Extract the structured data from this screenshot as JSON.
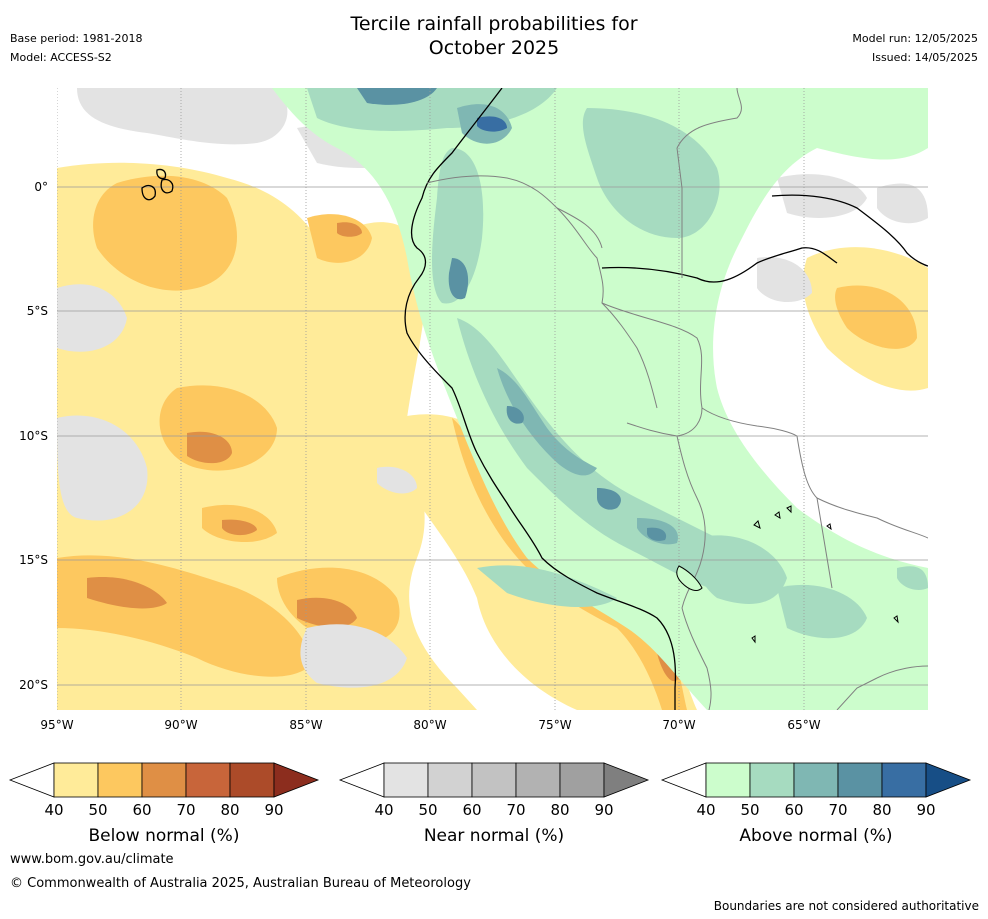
{
  "title_line1": "Tercile rainfall probabilities for",
  "title_line2": "October 2025",
  "base_period": "Base period: 1981-2018",
  "model": "Model: ACCESS-S2",
  "model_run": "Model run: 12/05/2025",
  "issued": "Issued: 14/05/2025",
  "map": {
    "lat_labels": [
      "0°",
      "5°S",
      "10°S",
      "15°S",
      "20°S"
    ],
    "lon_labels": [
      "95°W",
      "90°W",
      "85°W",
      "80°W",
      "75°W",
      "70°W",
      "65°W"
    ],
    "lat_range": [
      -21,
      4
    ],
    "lon_range": [
      -95,
      -60
    ]
  },
  "legends": [
    {
      "title": "Below normal (%)",
      "ticks": [
        "40",
        "50",
        "60",
        "70",
        "80",
        "90"
      ],
      "colors": [
        "#ffeb99",
        "#fdc85f",
        "#df8f45",
        "#c8653a",
        "#ac4b29",
        "#8c2d1e"
      ]
    },
    {
      "title": "Near normal (%)",
      "ticks": [
        "40",
        "50",
        "60",
        "70",
        "80",
        "90"
      ],
      "colors": [
        "#e3e3e3",
        "#d2d2d2",
        "#c2c2c2",
        "#b2b2b2",
        "#a0a0a0",
        "#7f7f7f"
      ]
    },
    {
      "title": "Above normal (%)",
      "ticks": [
        "40",
        "50",
        "60",
        "70",
        "80",
        "90"
      ],
      "colors": [
        "#ccfdcc",
        "#a6dbc0",
        "#7fb7b3",
        "#5a92a3",
        "#386ea3",
        "#174e86"
      ]
    }
  ],
  "footer": {
    "website": "www.bom.gov.au/climate",
    "copyright": "© Commonwealth of Australia 2025, Australian Bureau of Meteorology",
    "disclaimer": "Boundaries are not considered authoritative"
  }
}
